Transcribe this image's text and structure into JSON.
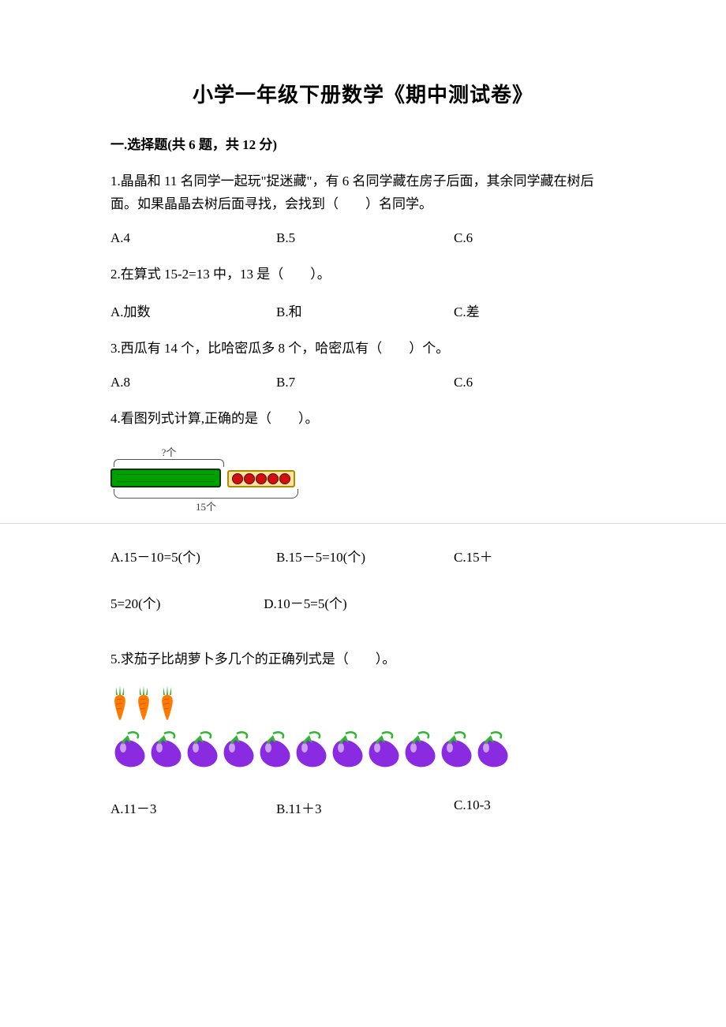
{
  "title": "小学一年级下册数学《期中测试卷》",
  "section1": {
    "heading": "一.选择题(共 6 题，共 12 分)",
    "q1": {
      "text": "1.晶晶和 11 名同学一起玩\"捉迷藏\"，有 6 名同学藏在房子后面，其余同学藏在树后面。如果晶晶去树后面寻找，会找到（　　）名同学。",
      "a": "A.4",
      "b": "B.5",
      "c": "C.6"
    },
    "q2": {
      "text": "2.在算式 15-2=13 中，13 是（　　）。",
      "a": "A.加数",
      "b": "B.和",
      "c": "C.差"
    },
    "q3": {
      "text": "3.西瓜有 14 个，比哈密瓜多 8 个，哈密瓜有（　　）个。",
      "a": "A.8",
      "b": "B.7",
      "c": "C.6"
    },
    "q4": {
      "text": "4.看图列式计算,正确的是（　　）。",
      "diagram": {
        "top_label": "?个",
        "bottom_label": "15个",
        "green_box_bg": "#00a000",
        "green_box_border": "#003300",
        "tray_bg": "#f4e5a0",
        "tray_border": "#b08a00",
        "ball_color": "#d01010",
        "ball_count": 5
      },
      "a": "A.15－10=5(个)",
      "b": "B.15－5=10(个)",
      "c": "C.15＋",
      "line2_left": "5=20(个)",
      "d": "D.10－5=5(个)"
    },
    "q5": {
      "text": "5.求茄子比胡萝卜多几个的正确列式是（　　）。",
      "carrots": {
        "count": 3,
        "body_color": "#ff7a00",
        "leaf_color": "#2fb82f"
      },
      "eggplants": {
        "count": 11,
        "body_color": "#8a2be2",
        "leaf_color": "#2fb82f"
      },
      "a": "A.11－3",
      "b": "B.11＋3",
      "c": "C.10-3"
    }
  },
  "colors": {
    "text": "#000000",
    "background": "#ffffff",
    "divider": "#d9d9d9"
  }
}
